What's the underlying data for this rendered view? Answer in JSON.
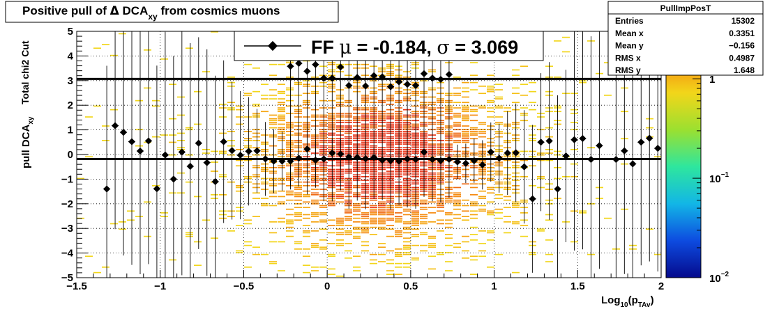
{
  "chart_data": {
    "type": "scatter",
    "title": {
      "main": "Positive pull of ",
      "delta": "Δ",
      "var": " DCA",
      "sub": "xy",
      "tail": " from cosmics muons"
    },
    "xlabel": {
      "main": "Log",
      "sub1": "10",
      "mid": "(p",
      "sub2": "TAv",
      "end": ")"
    },
    "ylabel": {
      "main": "pull DCA",
      "sub": "xy",
      "second": "Total chi2 Cut"
    },
    "xlim": [
      -1.5,
      2.0
    ],
    "ylim": [
      -5,
      5
    ],
    "x_ticks": [
      {
        "v": -1.5,
        "label": "−1.5"
      },
      {
        "v": -1,
        "label": "−1"
      },
      {
        "v": -0.5,
        "label": "−0.5"
      },
      {
        "v": 0,
        "label": "0"
      },
      {
        "v": 0.5,
        "label": "0.5"
      },
      {
        "v": 1,
        "label": "1"
      },
      {
        "v": 1.5,
        "label": "1.5"
      },
      {
        "v": 2,
        "label": "2"
      }
    ],
    "y_ticks": [
      {
        "v": -5,
        "label": "−5"
      },
      {
        "v": -4,
        "label": "−4"
      },
      {
        "v": -3,
        "label": "−3"
      },
      {
        "v": -2,
        "label": "−2"
      },
      {
        "v": -1,
        "label": "−1"
      },
      {
        "v": 0,
        "label": "0"
      },
      {
        "v": 1,
        "label": "1"
      },
      {
        "v": 2,
        "label": "2"
      },
      {
        "v": 3,
        "label": "3"
      },
      {
        "v": 4,
        "label": "4"
      },
      {
        "v": 5,
        "label": "5"
      }
    ],
    "grid": true,
    "colorbar": {
      "scale": "log",
      "range": [
        0.01,
        3
      ],
      "ticks": [
        {
          "v": 1,
          "base": "1",
          "exp": ""
        },
        {
          "v": 0.1,
          "base": "10",
          "exp": "−1"
        },
        {
          "v": 0.01,
          "base": "10",
          "exp": "−2"
        }
      ]
    },
    "legend": {
      "placement": "top-center",
      "label": "FF ",
      "mu": "μ",
      "mu_eq": " = -0.184, ",
      "sigma": "σ",
      "sigma_eq": " =   3.069"
    },
    "fit_lines": {
      "mean": -0.184,
      "sigma": 3.069
    },
    "stats_box": {
      "title": "PullImpPosT",
      "rows": [
        {
          "label": "Entries",
          "value": "15302"
        },
        {
          "label": "Mean x",
          "value": "0.3351"
        },
        {
          "label": "Mean y",
          "value": "−0.156"
        },
        {
          "label": "RMS x",
          "value": "0.4987"
        },
        {
          "label": "RMS y",
          "value": "1.648"
        }
      ]
    },
    "series": [
      {
        "points": [
          {
            "x": -1.32,
            "y": -1.4,
            "ey": 5.0
          },
          {
            "x": -1.27,
            "y": 1.17,
            "ey": 4.2
          },
          {
            "x": -1.22,
            "y": 0.9,
            "ey": 5.0
          },
          {
            "x": -1.17,
            "y": 0.52,
            "ey": 5.0
          },
          {
            "x": -1.12,
            "y": 0.14,
            "ey": 5.0
          },
          {
            "x": -1.07,
            "y": 0.55,
            "ey": 5.0
          },
          {
            "x": -1.02,
            "y": -1.39,
            "ey": 5.0
          },
          {
            "x": -0.97,
            "y": -0.02,
            "ey": 5.0
          },
          {
            "x": -0.92,
            "y": -1.0,
            "ey": 5.0
          },
          {
            "x": -0.87,
            "y": 0.1,
            "ey": 5.0
          },
          {
            "x": -0.82,
            "y": -0.48,
            "ey": 5.0
          },
          {
            "x": -0.77,
            "y": 0.46,
            "ey": 4.3
          },
          {
            "x": -0.72,
            "y": -0.33,
            "ey": 4.6
          },
          {
            "x": -0.67,
            "y": -1.1,
            "ey": 4.3
          },
          {
            "x": -0.62,
            "y": 0.52,
            "ey": 3.3
          },
          {
            "x": -0.57,
            "y": 0.16,
            "ey": 2.8
          },
          {
            "x": -0.52,
            "y": -0.03,
            "ey": 2.6
          },
          {
            "x": -0.47,
            "y": 0.13,
            "ey": 2.2
          },
          {
            "x": -0.42,
            "y": 0.15,
            "ey": 1.7
          },
          {
            "x": -0.37,
            "y": -0.18,
            "ey": 1.5
          },
          {
            "x": -0.32,
            "y": -0.27,
            "ey": 1.3
          },
          {
            "x": -0.27,
            "y": -0.27,
            "ey": 1.2
          },
          {
            "x": -0.22,
            "y": -0.27,
            "ey": 1.0
          },
          {
            "x": -0.17,
            "y": -0.15,
            "ey": 0.9
          },
          {
            "x": -0.12,
            "y": 0.22,
            "ey": 0.9
          },
          {
            "x": -0.07,
            "y": -0.23,
            "ey": 0.8
          },
          {
            "x": -0.02,
            "y": -0.18,
            "ey": 0.7
          },
          {
            "x": 0.03,
            "y": 0.06,
            "ey": 0.6
          },
          {
            "x": 0.08,
            "y": 0.02,
            "ey": 0.6
          },
          {
            "x": 0.13,
            "y": -0.1,
            "ey": 0.5
          },
          {
            "x": 0.18,
            "y": -0.12,
            "ey": 0.5
          },
          {
            "x": 0.23,
            "y": -0.17,
            "ey": 0.5
          },
          {
            "x": 0.28,
            "y": -0.12,
            "ey": 0.4
          },
          {
            "x": 0.33,
            "y": -0.23,
            "ey": 0.4
          },
          {
            "x": 0.38,
            "y": -0.25,
            "ey": 0.4
          },
          {
            "x": 0.43,
            "y": -0.27,
            "ey": 0.4
          },
          {
            "x": 0.48,
            "y": -0.18,
            "ey": 0.4
          },
          {
            "x": 0.53,
            "y": -0.2,
            "ey": 0.4
          },
          {
            "x": 0.58,
            "y": 0.1,
            "ey": 0.5
          },
          {
            "x": 0.63,
            "y": -0.2,
            "ey": 0.5
          },
          {
            "x": 0.68,
            "y": -0.25,
            "ey": 0.5
          },
          {
            "x": 0.73,
            "y": -0.2,
            "ey": 0.6
          },
          {
            "x": 0.78,
            "y": -0.3,
            "ey": 0.7
          },
          {
            "x": 0.83,
            "y": -0.36,
            "ey": 0.8
          },
          {
            "x": 0.88,
            "y": -0.25,
            "ey": 0.9
          },
          {
            "x": 0.93,
            "y": -0.42,
            "ey": 1.0
          },
          {
            "x": 0.98,
            "y": 0.1,
            "ey": 1.2
          },
          {
            "x": 1.03,
            "y": -0.15,
            "ey": 1.4
          },
          {
            "x": 1.08,
            "y": 0.06,
            "ey": 1.7
          },
          {
            "x": 1.13,
            "y": 0.07,
            "ey": 2.0
          },
          {
            "x": 1.18,
            "y": -0.5,
            "ey": 2.3
          },
          {
            "x": 1.23,
            "y": -1.8,
            "ey": 3.0
          },
          {
            "x": 1.28,
            "y": 0.5,
            "ey": 2.8
          },
          {
            "x": 1.33,
            "y": 0.55,
            "ey": 3.2
          },
          {
            "x": 1.38,
            "y": -1.4,
            "ey": 3.8
          },
          {
            "x": 1.43,
            "y": -0.06,
            "ey": 3.5
          },
          {
            "x": 1.48,
            "y": 0.6,
            "ey": 4.5
          },
          {
            "x": 1.53,
            "y": 0.65,
            "ey": 4.5
          },
          {
            "x": 1.58,
            "y": -0.2,
            "ey": 5.0
          },
          {
            "x": 1.63,
            "y": 0.36,
            "ey": 5.0
          },
          {
            "x": 1.73,
            "y": -0.2,
            "ey": 5.0
          },
          {
            "x": 1.78,
            "y": 0.15,
            "ey": 5.0
          },
          {
            "x": 1.83,
            "y": -0.38,
            "ey": 5.0
          },
          {
            "x": 1.88,
            "y": 0.5,
            "ey": 5.0
          },
          {
            "x": 1.93,
            "y": 0.66,
            "ey": 5.0
          },
          {
            "x": 1.98,
            "y": 0.25,
            "ey": 5.0
          },
          {
            "x": -0.22,
            "y": 3.58,
            "ey": 5.0
          },
          {
            "x": -0.17,
            "y": 3.7,
            "ey": 5.0
          },
          {
            "x": -0.12,
            "y": 3.38,
            "ey": 5.0
          },
          {
            "x": -0.07,
            "y": 3.65,
            "ey": 5.0
          },
          {
            "x": -0.02,
            "y": 3.1,
            "ey": 5.0
          },
          {
            "x": 0.03,
            "y": 3.1,
            "ey": 5.0
          },
          {
            "x": 0.08,
            "y": 3.55,
            "ey": 5.0
          },
          {
            "x": 0.13,
            "y": 2.8,
            "ey": 5.0
          },
          {
            "x": 0.18,
            "y": 3.13,
            "ey": 5.0
          },
          {
            "x": 0.23,
            "y": 2.78,
            "ey": 5.0
          },
          {
            "x": 0.28,
            "y": 3.2,
            "ey": 5.0
          },
          {
            "x": 0.33,
            "y": 3.15,
            "ey": 5.0
          },
          {
            "x": 0.38,
            "y": 2.75,
            "ey": 5.0
          },
          {
            "x": 0.43,
            "y": 2.95,
            "ey": 5.0
          },
          {
            "x": 0.48,
            "y": 2.85,
            "ey": 5.0
          },
          {
            "x": 0.53,
            "y": 2.8,
            "ey": 5.0
          },
          {
            "x": 0.58,
            "y": 3.28,
            "ey": 5.0
          },
          {
            "x": 0.63,
            "y": 3.1,
            "ey": 5.0
          },
          {
            "x": 0.68,
            "y": 3.05,
            "ey": 5.0
          },
          {
            "x": 0.73,
            "y": 3.25,
            "ey": 5.0
          }
        ]
      }
    ]
  }
}
